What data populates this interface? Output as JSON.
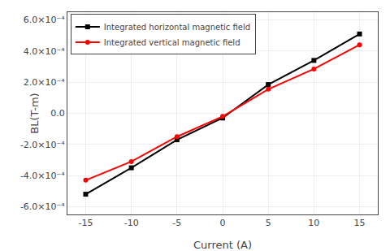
{
  "chart_data": {
    "type": "line",
    "x": [
      -15,
      -10,
      -5,
      0,
      5,
      10,
      15
    ],
    "series": [
      {
        "name": "Integrated horizontal magnetic field",
        "color": "#000000",
        "marker": "square",
        "line_style": "solid",
        "values": [
          -0.00052,
          -0.00035,
          -0.00017,
          -3e-05,
          0.000185,
          0.00034,
          0.00051
        ]
      },
      {
        "name": "Integrated vertical magnetic field",
        "color": "#ff0000",
        "marker": "circle",
        "line_style": "solid",
        "values": [
          -0.00043,
          -0.00031,
          -0.00015,
          -2e-05,
          0.000155,
          0.000285,
          0.00044
        ]
      }
    ],
    "x_label": "Current (A)",
    "y_label": "BL(T-m)",
    "xlim": [
      -17,
      17
    ],
    "ylim": [
      -0.00065,
      0.00065
    ],
    "xticks": [
      -15,
      -10,
      -5,
      0,
      5,
      10,
      15
    ],
    "yticks": [
      {
        "value": -0.0006,
        "label": "-6.0×10⁻⁴"
      },
      {
        "value": -0.0004,
        "label": "-4.0×10⁻⁴"
      },
      {
        "value": -0.0002,
        "label": "-2.0×10⁻⁴"
      },
      {
        "value": 0,
        "label": "0.0"
      },
      {
        "value": 0.0002,
        "label": "2.0×10⁻⁴"
      },
      {
        "value": 0.0004,
        "label": "4.0×10⁻⁴"
      },
      {
        "value": 0.0006,
        "label": "6.0×10⁻⁴"
      }
    ],
    "grid": true,
    "legend": "upper left"
  }
}
